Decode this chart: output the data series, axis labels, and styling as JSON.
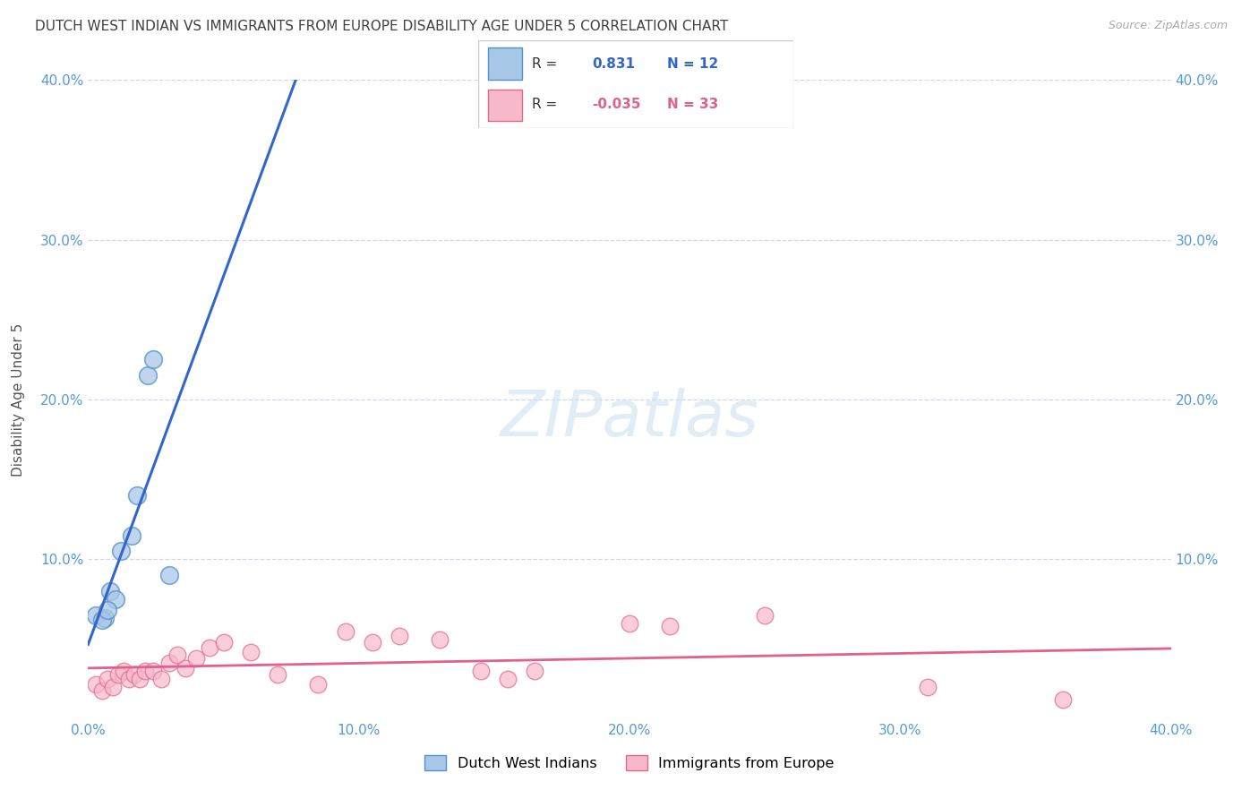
{
  "title": "DUTCH WEST INDIAN VS IMMIGRANTS FROM EUROPE DISABILITY AGE UNDER 5 CORRELATION CHART",
  "source": "Source: ZipAtlas.com",
  "ylabel": "Disability Age Under 5",
  "xlim": [
    0.0,
    0.4
  ],
  "ylim": [
    0.0,
    0.4
  ],
  "xtick_vals": [
    0.0,
    0.1,
    0.2,
    0.3,
    0.4
  ],
  "xtick_labels": [
    "0.0%",
    "10.0%",
    "20.0%",
    "30.0%",
    "40.0%"
  ],
  "ytick_vals": [
    0.1,
    0.2,
    0.3,
    0.4
  ],
  "ytick_labels": [
    "10.0%",
    "20.0%",
    "30.0%",
    "40.0%"
  ],
  "blue_points_x": [
    0.003,
    0.006,
    0.008,
    0.01,
    0.012,
    0.016,
    0.018,
    0.022,
    0.024,
    0.03,
    0.005,
    0.007
  ],
  "blue_points_y": [
    0.065,
    0.063,
    0.08,
    0.075,
    0.105,
    0.115,
    0.14,
    0.215,
    0.225,
    0.09,
    0.062,
    0.068
  ],
  "pink_points_x": [
    0.003,
    0.005,
    0.007,
    0.009,
    0.011,
    0.013,
    0.015,
    0.017,
    0.019,
    0.021,
    0.024,
    0.027,
    0.03,
    0.033,
    0.036,
    0.04,
    0.045,
    0.05,
    0.06,
    0.07,
    0.085,
    0.095,
    0.105,
    0.115,
    0.13,
    0.145,
    0.155,
    0.165,
    0.2,
    0.215,
    0.25,
    0.31,
    0.36
  ],
  "pink_points_y": [
    0.022,
    0.018,
    0.025,
    0.02,
    0.028,
    0.03,
    0.025,
    0.028,
    0.025,
    0.03,
    0.03,
    0.025,
    0.035,
    0.04,
    0.032,
    0.038,
    0.045,
    0.048,
    0.042,
    0.028,
    0.022,
    0.055,
    0.048,
    0.052,
    0.05,
    0.03,
    0.025,
    0.03,
    0.06,
    0.058,
    0.065,
    0.02,
    0.012
  ],
  "blue_R": 0.831,
  "blue_N": 12,
  "pink_R": -0.035,
  "pink_N": 33,
  "blue_scatter_color": "#a8c8e8",
  "blue_scatter_edge": "#5590c8",
  "pink_scatter_color": "#f8b8cc",
  "pink_scatter_edge": "#e06888",
  "blue_line_color": "#3366cc",
  "pink_line_color": "#e06090",
  "watermark_color": "#c8dff0",
  "title_color": "#404040",
  "grid_color": "#d0d8e8",
  "axis_tick_color": "#5599dd",
  "legend_label_blue": "Dutch West Indians",
  "legend_label_pink": "Immigrants from Europe"
}
